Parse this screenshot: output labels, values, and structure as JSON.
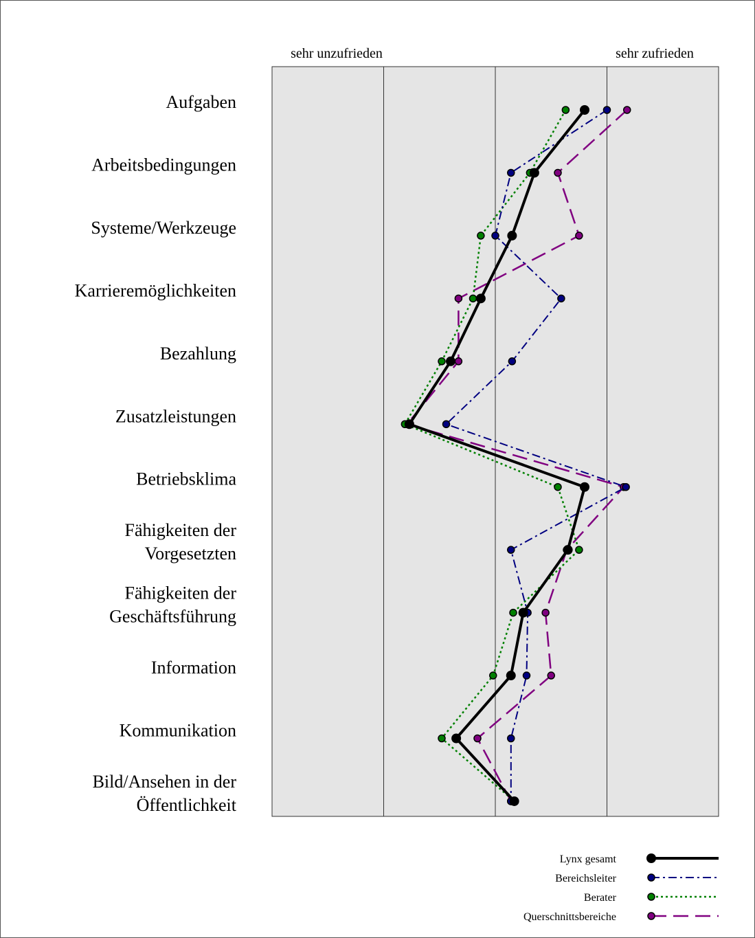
{
  "chart_data": {
    "type": "line",
    "orientation": "horizontal-profile",
    "x_labels": {
      "left": "sehr unzufrieden",
      "right": "sehr zufrieden"
    },
    "xlim": [
      1,
      5
    ],
    "grid": true,
    "legend_position": "bottom-right",
    "categories": [
      [
        "Aufgaben"
      ],
      [
        "Arbeitsbedingungen"
      ],
      [
        "Systeme/Werkzeuge"
      ],
      [
        "Karrieremöglichkeiten"
      ],
      [
        "Bezahlung"
      ],
      [
        "Zusatzleistungen"
      ],
      [
        "Betriebsklima"
      ],
      [
        "Fähigkeiten der",
        "Vorgesetzten"
      ],
      [
        "Fähigkeiten der",
        "Geschäftsführung"
      ],
      [
        "Information"
      ],
      [
        "Kommunikation"
      ],
      [
        "Bild/Ansehen in der",
        "Öffentlichkeit"
      ]
    ],
    "series": [
      {
        "name": "Lynx gesamt",
        "color": "#000000",
        "style": "solid",
        "values": [
          3.8,
          3.35,
          3.15,
          2.87,
          2.6,
          2.23,
          3.8,
          3.65,
          3.25,
          3.14,
          2.65,
          3.17
        ]
      },
      {
        "name": "Bereichsleiter",
        "color": "#000080",
        "style": "dashdot",
        "values": [
          4.0,
          3.14,
          3.0,
          3.59,
          3.15,
          2.56,
          4.17,
          3.14,
          3.29,
          3.28,
          3.14,
          3.14
        ]
      },
      {
        "name": "Berater",
        "color": "#008000",
        "style": "dotted",
        "values": [
          3.63,
          3.31,
          2.87,
          2.8,
          2.52,
          2.19,
          3.56,
          3.75,
          3.16,
          2.98,
          2.52,
          3.17
        ]
      },
      {
        "name": "Querschnittsbereiche",
        "color": "#800080",
        "style": "dashed",
        "values": [
          4.18,
          3.56,
          3.75,
          2.67,
          2.67,
          2.21,
          4.15,
          3.64,
          3.45,
          3.5,
          2.84,
          3.14
        ]
      }
    ]
  }
}
